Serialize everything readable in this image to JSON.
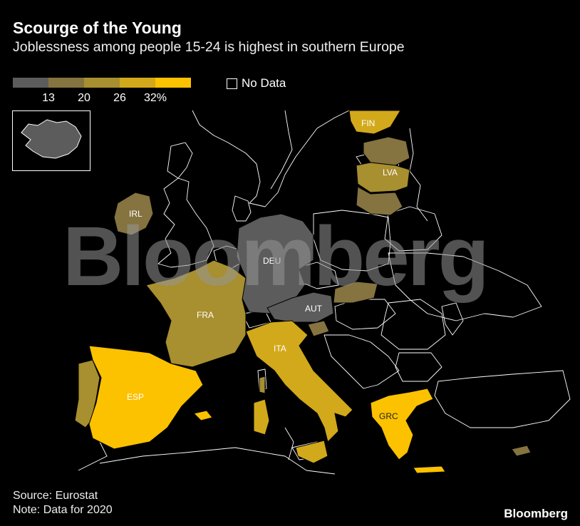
{
  "title": "Scourge of the Young",
  "subtitle": "Joblessness among people 15-24 is highest in southern Europe",
  "legend": {
    "colors": [
      "#5c5c5c",
      "#857340",
      "#a88f2f",
      "#d2a91a",
      "#fcc200"
    ],
    "ticks": [
      "13",
      "20",
      "26",
      "32%"
    ],
    "no_data_label": "No Data"
  },
  "map_labels": {
    "fin": "FIN",
    "lva": "LVA",
    "irl": "IRL",
    "deu": "DEU",
    "fra": "FRA",
    "aut": "AUT",
    "ita": "ITA",
    "esp": "ESP",
    "grc": "GRC"
  },
  "watermark": "Bloomberg",
  "source": "Source: Eurostat",
  "note": "Note: Data for 2020",
  "brand": "Bloomberg"
}
